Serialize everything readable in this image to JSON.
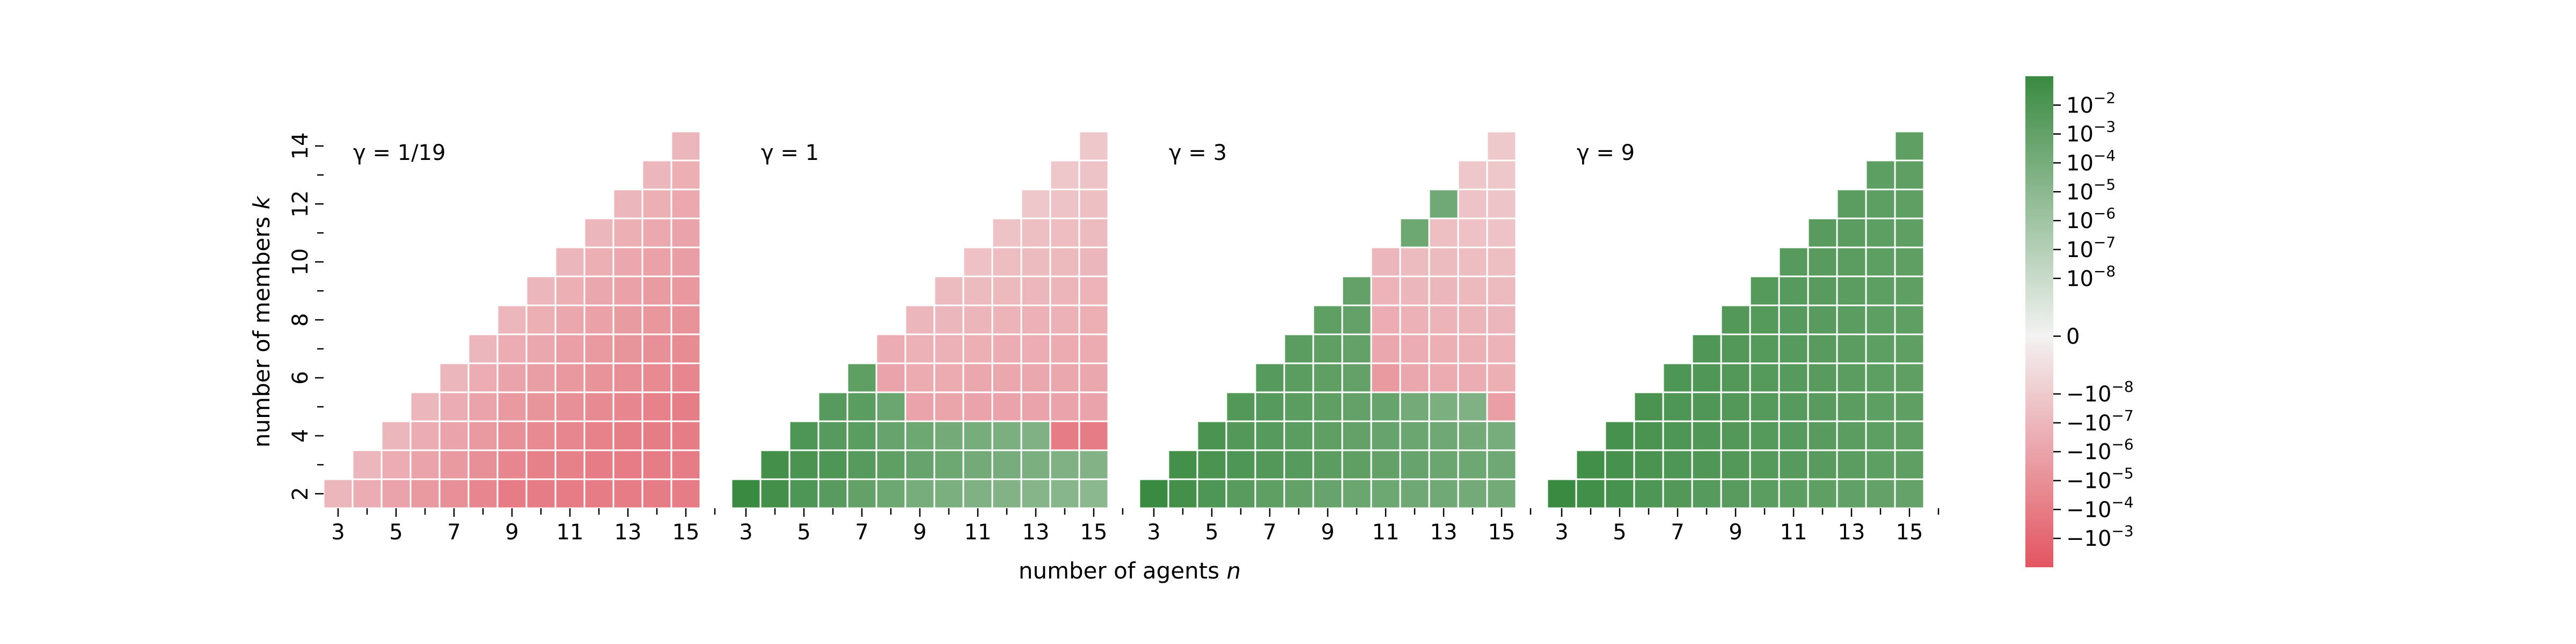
{
  "chart_data": {
    "type": "heatmap",
    "xlabel_prefix": "number of agents ",
    "xlabel_var": "n",
    "ylabel_prefix": "number of members ",
    "ylabel_var": "k",
    "n_range": [
      3,
      15
    ],
    "k_range": [
      2,
      14
    ],
    "x_tick_labels": [
      "3",
      "5",
      "7",
      "9",
      "11",
      "13",
      "15"
    ],
    "y_tick_labels": [
      "2",
      "4",
      "6",
      "8",
      "10",
      "12",
      "14"
    ],
    "cell_rule": "cell exists for 2 <= k <= n-1",
    "value_encoding": "signed log level: +1..+9 = 1e-9..1e-1 (green, positive), -1..-9 = -1e-9..-1e-1 (red, negative), 0 = zero",
    "panels": [
      {
        "label": "γ = 1/19",
        "levels": {
          "3": [
            -3
          ],
          "4": [
            -3.5,
            -3
          ],
          "5": [
            -4,
            -3.5,
            -3
          ],
          "6": [
            -4.5,
            -4,
            -3.5,
            -3
          ],
          "7": [
            -5,
            -4.5,
            -4,
            -3.5,
            -3
          ],
          "8": [
            -5.5,
            -5,
            -4.5,
            -4,
            -3.5,
            -3
          ],
          "9": [
            -6,
            -5.5,
            -5,
            -4.5,
            -4,
            -3.5,
            -3
          ],
          "10": [
            -6,
            -5.8,
            -5.3,
            -4.8,
            -4.3,
            -3.8,
            -3.4,
            -3
          ],
          "11": [
            -6,
            -5.8,
            -5.5,
            -5,
            -4.6,
            -4.2,
            -3.8,
            -3.4,
            -3
          ],
          "12": [
            -6,
            -6,
            -5.7,
            -5.3,
            -4.9,
            -4.5,
            -4.1,
            -3.8,
            -3.4,
            -3
          ],
          "13": [
            -6,
            -6,
            -5.9,
            -5.5,
            -5.1,
            -4.8,
            -4.4,
            -4.1,
            -3.8,
            -3.4,
            -3
          ],
          "14": [
            -6,
            -6,
            -6,
            -5.7,
            -5.3,
            -5,
            -4.7,
            -4.4,
            -4.1,
            -3.7,
            -3.4,
            -3
          ],
          "15": [
            -6,
            -6,
            -6,
            -5.9,
            -5.5,
            -5.2,
            -4.9,
            -4.6,
            -4.3,
            -4,
            -3.7,
            -3.4,
            -3
          ]
        }
      },
      {
        "label": "γ = 1",
        "levels": {
          "3": [
            9
          ],
          "4": [
            8.5,
            8.5
          ],
          "5": [
            8,
            8.2,
            8
          ],
          "6": [
            7.5,
            8,
            7.6,
            7.6
          ],
          "7": [
            7,
            7.6,
            7.4,
            7.4,
            7.2
          ],
          "8": [
            6.5,
            7.2,
            6.8,
            6.6,
            -4,
            -3.5
          ],
          "9": [
            6,
            6.8,
            6.5,
            -4,
            -3.6,
            -3.3,
            -3
          ],
          "10": [
            5.8,
            6.5,
            6.2,
            -3.9,
            -3.6,
            -3.3,
            -3,
            -2.8
          ],
          "11": [
            5.6,
            6.2,
            6,
            -4,
            -3.8,
            -3.4,
            -3.1,
            -2.8,
            -2.5
          ],
          "12": [
            5.5,
            6,
            5.8,
            -4,
            -3.8,
            -3.5,
            -3.2,
            -2.9,
            -2.7,
            -2.4
          ],
          "13": [
            5.3,
            5.8,
            5.6,
            -4,
            -3.8,
            -3.5,
            -3.3,
            -3,
            -2.8,
            -2.6,
            -2.2
          ],
          "14": [
            5.2,
            5.6,
            -6,
            -4,
            -3.8,
            -3.6,
            -3.3,
            -3.1,
            -2.9,
            -2.7,
            -2.4,
            -2.2
          ],
          "15": [
            5,
            5.5,
            -6,
            -4,
            -3.8,
            -3.6,
            -3.4,
            -3.2,
            -3,
            -2.8,
            -2.6,
            -2.4,
            -2.2
          ]
        }
      },
      {
        "label": "γ = 3",
        "levels": {
          "3": [
            9
          ],
          "4": [
            8.5,
            8.5
          ],
          "5": [
            8,
            8.2,
            8.2
          ],
          "6": [
            7.5,
            8,
            7.8,
            7.8
          ],
          "7": [
            7.2,
            7.8,
            7.6,
            7.6,
            7.6
          ],
          "8": [
            7,
            7.6,
            7.4,
            7.4,
            7.4,
            7.4
          ],
          "9": [
            6.8,
            7.4,
            7.2,
            7.2,
            7.2,
            7.2,
            7.2
          ],
          "10": [
            6.6,
            7.2,
            7,
            7,
            7,
            7,
            7,
            7
          ],
          "11": [
            6.5,
            7,
            6.8,
            6.8,
            -4.5,
            -3.8,
            -3.5,
            -3.2,
            -3
          ],
          "12": [
            6.4,
            6.8,
            6.6,
            6.2,
            -3.8,
            -3.5,
            -3.3,
            -3,
            -2.8,
            6.5
          ],
          "13": [
            6.3,
            6.6,
            6.4,
            5.8,
            -3.6,
            -3.4,
            -3.2,
            -3,
            -2.8,
            -2.6,
            6.3
          ],
          "14": [
            6.2,
            6.5,
            6.2,
            5.6,
            -3.5,
            -3.3,
            -3.1,
            -2.9,
            -2.7,
            -2.5,
            -2.4,
            -2.2
          ],
          "15": [
            6.2,
            6.4,
            6,
            -4.2,
            -3.4,
            -3.2,
            -3,
            -2.8,
            -2.6,
            -2.4,
            -2.3,
            -2.2,
            -2.1
          ]
        }
      },
      {
        "label": "γ = 9",
        "levels": {
          "3": [
            9
          ],
          "4": [
            8.6,
            8.6
          ],
          "5": [
            8.3,
            8.4,
            8.4
          ],
          "6": [
            8,
            8.2,
            8.2,
            8.2
          ],
          "7": [
            7.8,
            8,
            8,
            8,
            8
          ],
          "8": [
            7.6,
            7.9,
            7.9,
            7.9,
            7.9,
            7.9
          ],
          "9": [
            7.5,
            7.8,
            7.8,
            7.8,
            7.8,
            7.8,
            7.8
          ],
          "10": [
            7.4,
            7.7,
            7.7,
            7.7,
            7.7,
            7.7,
            7.7,
            7.7
          ],
          "11": [
            7.3,
            7.6,
            7.6,
            7.6,
            7.6,
            7.6,
            7.6,
            7.6,
            7.6
          ],
          "12": [
            7.2,
            7.5,
            7.5,
            7.5,
            7.5,
            7.5,
            7.5,
            7.5,
            7.5,
            7.5
          ],
          "13": [
            7.1,
            7.4,
            7.4,
            7.4,
            7.4,
            7.4,
            7.4,
            7.4,
            7.4,
            7.4,
            7.4
          ],
          "14": [
            7,
            7.3,
            7.3,
            7.3,
            7.3,
            7.3,
            7.3,
            7.3,
            7.3,
            7.3,
            7.3,
            7.3
          ],
          "15": [
            6.9,
            7.2,
            7.2,
            7.2,
            7.2,
            7.2,
            7.2,
            7.2,
            7.2,
            7.2,
            7.2,
            7.2,
            7.2
          ]
        }
      }
    ],
    "colorbar": {
      "colors": {
        "negative": "#e0414f",
        "zero": "#f2f2f2",
        "positive": "#3a8a41"
      },
      "labels": [
        {
          "text": "10",
          "exp": "−2",
          "level": 8
        },
        {
          "text": "10",
          "exp": "−3",
          "level": 7
        },
        {
          "text": "10",
          "exp": "−4",
          "level": 6
        },
        {
          "text": "10",
          "exp": "−5",
          "level": 5
        },
        {
          "text": "10",
          "exp": "−6",
          "level": 4
        },
        {
          "text": "10",
          "exp": "−7",
          "level": 3
        },
        {
          "text": "10",
          "exp": "−8",
          "level": 2
        },
        {
          "text": "0",
          "exp": "",
          "level": 0
        },
        {
          "text": "−10",
          "exp": "−8",
          "level": -2
        },
        {
          "text": "−10",
          "exp": "−7",
          "level": -3
        },
        {
          "text": "−10",
          "exp": "−6",
          "level": -4
        },
        {
          "text": "−10",
          "exp": "−5",
          "level": -5
        },
        {
          "text": "−10",
          "exp": "−4",
          "level": -6
        },
        {
          "text": "−10",
          "exp": "−3",
          "level": -7
        }
      ]
    }
  }
}
